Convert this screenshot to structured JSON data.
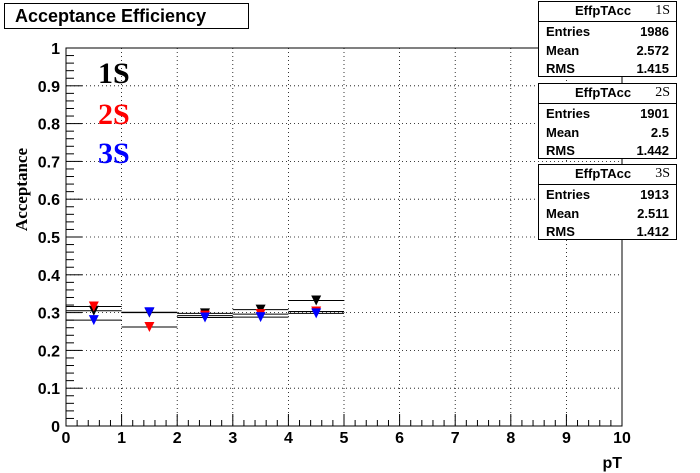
{
  "title": "Acceptance Efficiency",
  "stats_boxes": [
    {
      "name": "EffpTAcc",
      "tag": "1S",
      "entries_label": "Entries",
      "entries": "1986",
      "mean_label": "Mean",
      "mean": "2.572",
      "rms_label": "RMS",
      "rms": "1.415"
    },
    {
      "name": "EffpTAcc",
      "tag": "2S",
      "entries_label": "Entries",
      "entries": "1901",
      "mean_label": "Mean",
      "mean": "2.5",
      "rms_label": "RMS",
      "rms": "1.442"
    },
    {
      "name": "EffpTAcc",
      "tag": "3S",
      "entries_label": "Entries",
      "entries": "1913",
      "mean_label": "Mean",
      "mean": "2.511",
      "rms_label": "RMS",
      "rms": "1.412"
    }
  ],
  "legend_labels": {
    "s1": "1S",
    "s2": "2S",
    "s3": "3S"
  },
  "colors": {
    "s1": "#000000",
    "s2": "#ff0000",
    "s3": "#0000ff"
  },
  "chart_data": {
    "type": "scatter",
    "xlabel": "pT",
    "ylabel": "Acceptance",
    "xlim": [
      0,
      10
    ],
    "ylim": [
      0,
      1
    ],
    "x_ticks": [
      "0",
      "1",
      "2",
      "3",
      "4",
      "5",
      "6",
      "7",
      "8",
      "9",
      "10"
    ],
    "y_ticks": [
      "0",
      "0.1",
      "0.2",
      "0.3",
      "0.4",
      "0.5",
      "0.6",
      "0.7",
      "0.8",
      "0.9",
      "1"
    ],
    "grid": true,
    "bin_edges": [
      0,
      1,
      2,
      3,
      4,
      5
    ],
    "x": [
      0.5,
      1.5,
      2.5,
      3.5,
      4.5
    ],
    "series": [
      {
        "name": "1S",
        "values": [
          0.305,
          0.3,
          0.298,
          0.308,
          0.332
        ],
        "color": "#000000"
      },
      {
        "name": "2S",
        "values": [
          0.316,
          0.262,
          0.292,
          0.296,
          0.303
        ],
        "color": "#ff0000"
      },
      {
        "name": "3S",
        "values": [
          0.28,
          0.301,
          0.287,
          0.288,
          0.298
        ],
        "color": "#0000ff"
      }
    ]
  }
}
